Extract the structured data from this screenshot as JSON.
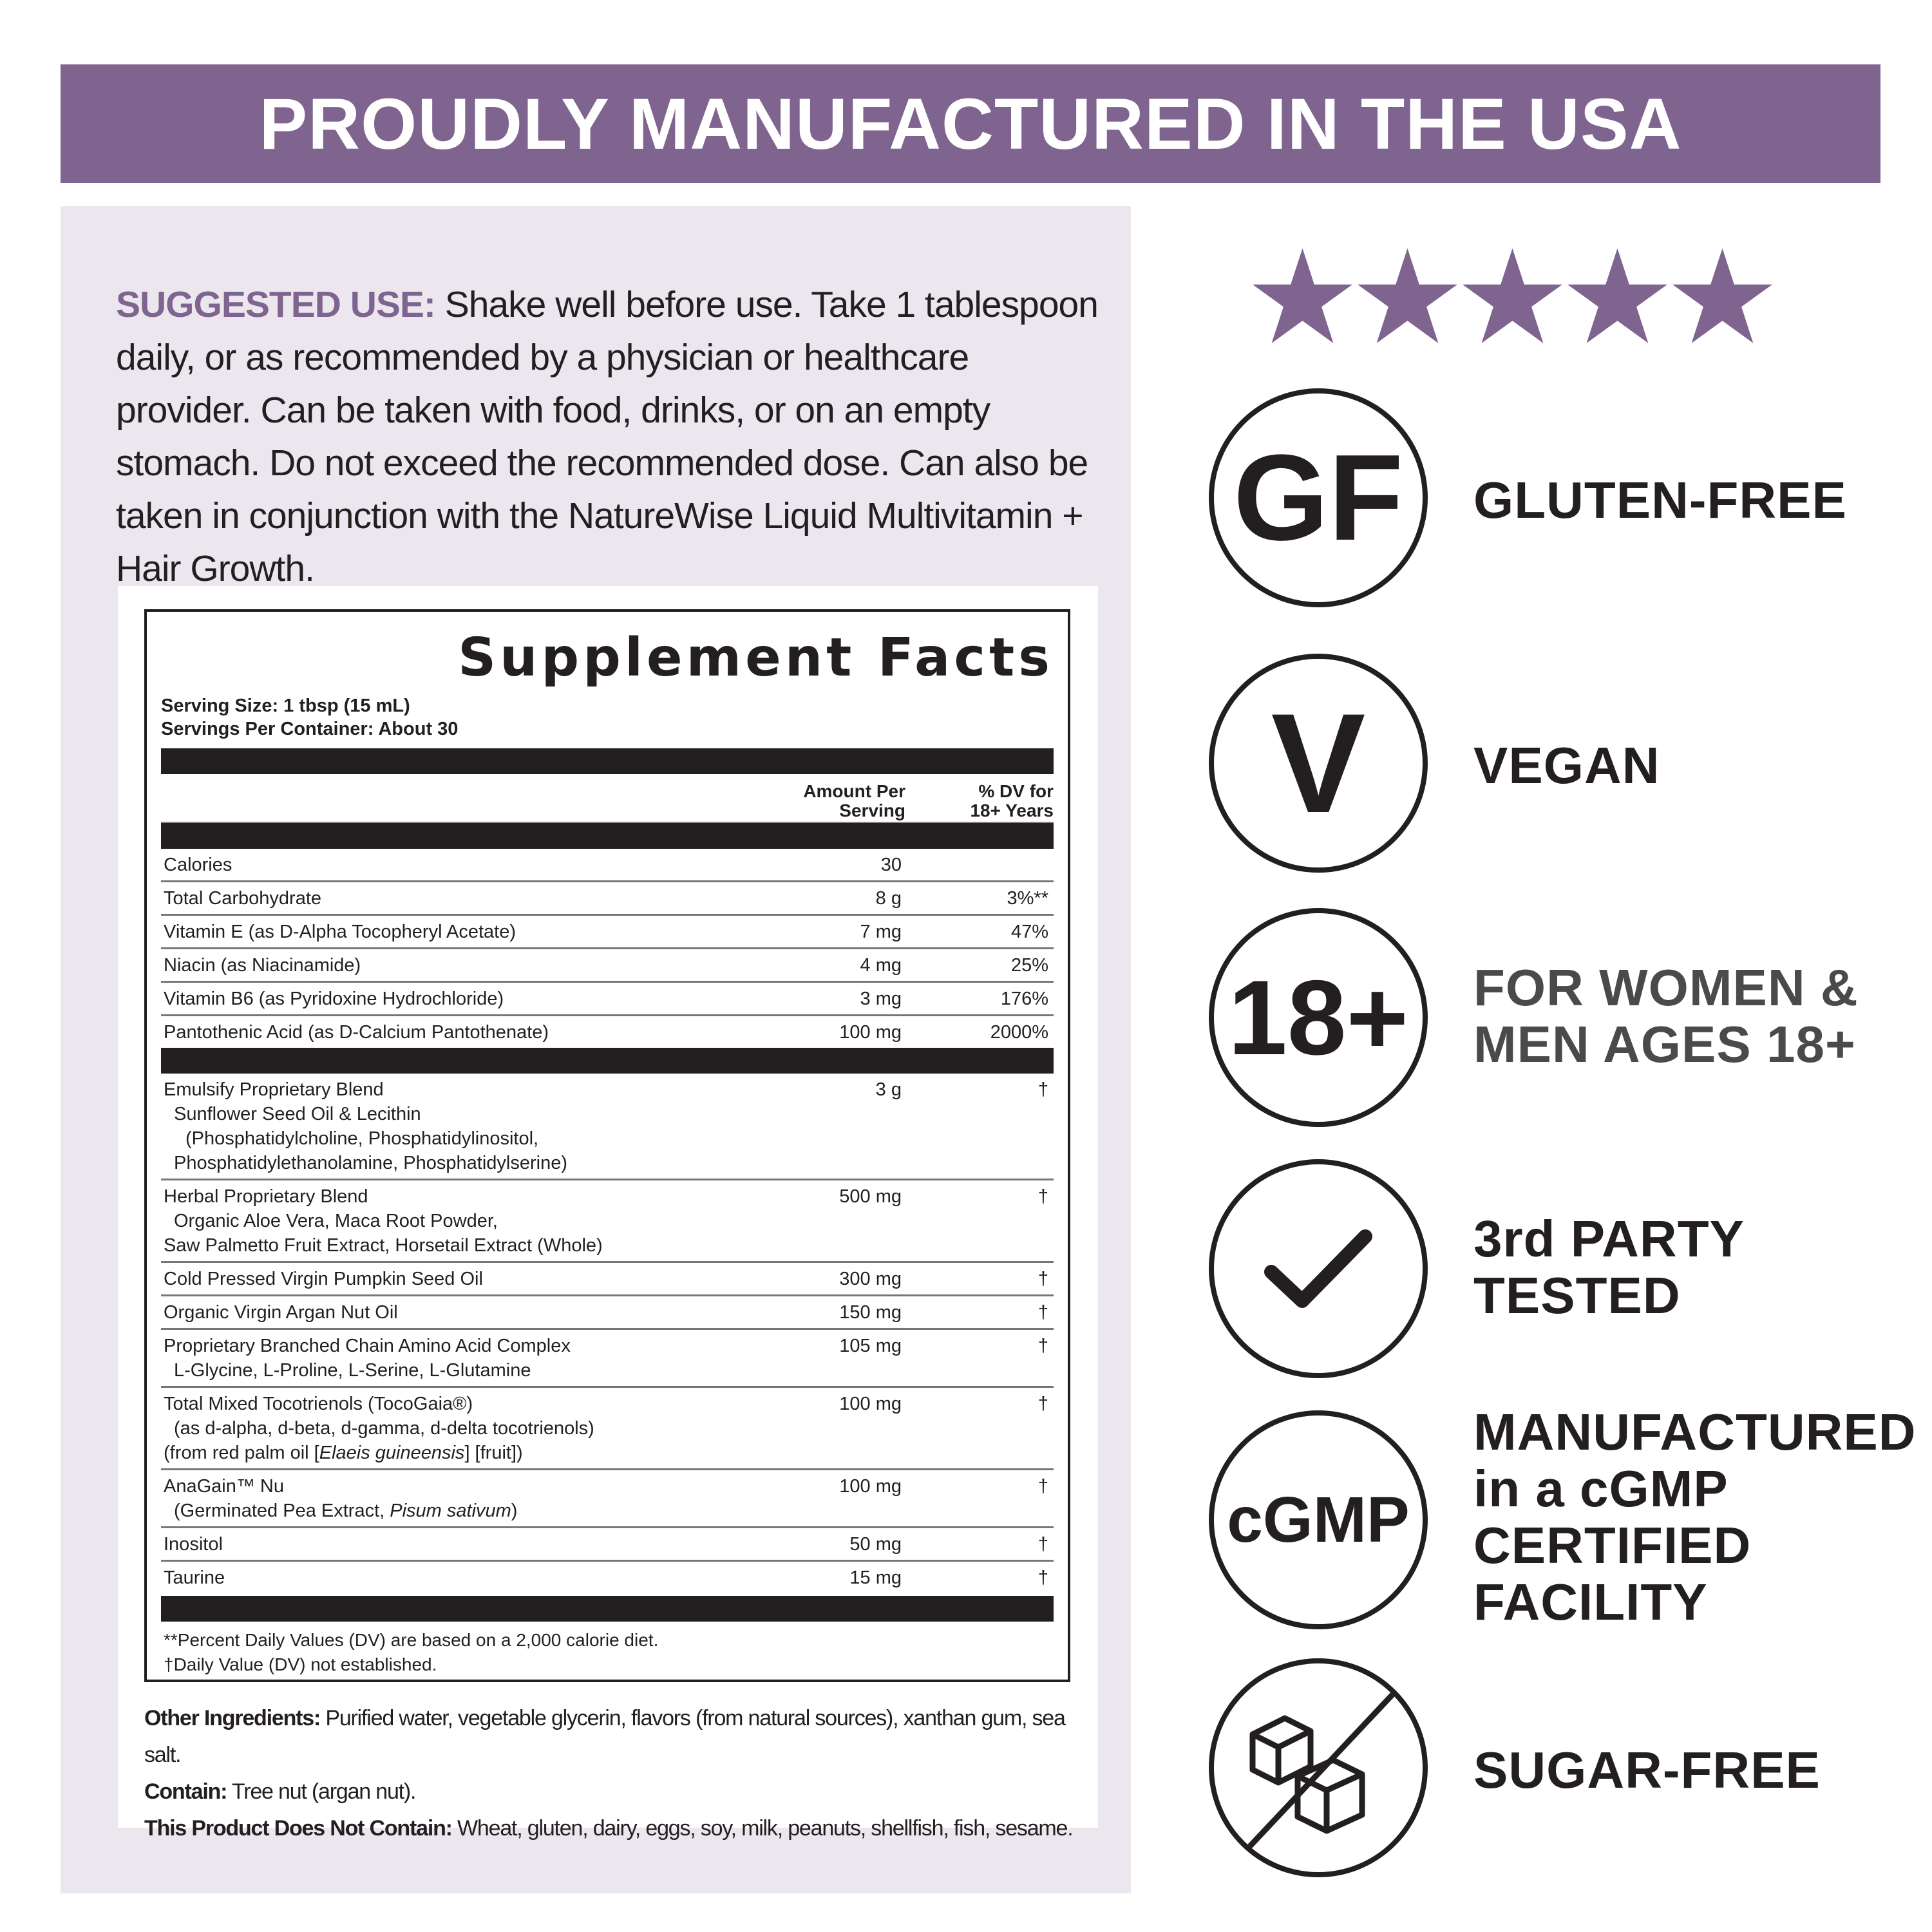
{
  "banner": {
    "title": "PROUDLY MANUFACTURED IN THE USA"
  },
  "colors": {
    "accent": "#7f6490",
    "panel": "#ece7ee",
    "text": "#231f20"
  },
  "suggested_use": {
    "label": "SUGGESTED USE:",
    "text": " Shake well before use. Take 1 tablespoon daily, or as recommended by a physician or healthcare provider. Can be taken with food, drinks, or on an empty stomach. Do not exceed the recommended dose. Can also be taken in conjunction with the NatureWise Liquid Multivitamin + Hair Growth."
  },
  "facts": {
    "title": "Supplement Facts",
    "serving_size": "Serving Size: 1 tbsp (15 mL)",
    "servings_per": "Servings Per Container: About 30",
    "col_amount": [
      "Amount Per",
      "Serving"
    ],
    "col_dv": [
      "% DV for",
      "18+ Years"
    ],
    "section1": [
      {
        "lines": [
          [
            {
              "t": "Calories"
            }
          ]
        ],
        "amount": "30",
        "dv": ""
      },
      {
        "lines": [
          [
            {
              "t": "Total Carbohydrate"
            }
          ]
        ],
        "amount": "8 g",
        "dv": "3%**"
      },
      {
        "lines": [
          [
            {
              "t": "Vitamin E (as D-Alpha Tocopheryl Acetate)"
            }
          ]
        ],
        "amount": "7 mg",
        "dv": "47%"
      },
      {
        "lines": [
          [
            {
              "t": "Niacin (as Niacinamide)"
            }
          ]
        ],
        "amount": "4 mg",
        "dv": "25%"
      },
      {
        "lines": [
          [
            {
              "t": "Vitamin B6 (as Pyridoxine Hydrochloride)"
            }
          ]
        ],
        "amount": "3 mg",
        "dv": "176%"
      },
      {
        "lines": [
          [
            {
              "t": "Pantothenic Acid (as D-Calcium Pantothenate)"
            }
          ]
        ],
        "amount": "100 mg",
        "dv": "2000%"
      }
    ],
    "section2": [
      {
        "lines": [
          [
            {
              "t": "Emulsify Proprietary Blend"
            }
          ],
          [
            {
              "t": "Sunflower Seed Oil & Lecithin"
            }
          ],
          [
            {
              "t": "(Phosphatidylcholine, Phosphatidylinositol,"
            }
          ],
          [
            {
              "t": "Phosphatidylethanolamine, Phosphatidylserine)"
            }
          ]
        ],
        "indent": [
          0,
          1,
          2,
          1
        ],
        "amount": "3 g",
        "dv": "†"
      },
      {
        "lines": [
          [
            {
              "t": "Herbal Proprietary Blend"
            }
          ],
          [
            {
              "t": "Organic Aloe Vera, Maca Root Powder,"
            }
          ],
          [
            {
              "t": "Saw Palmetto Fruit Extract, Horsetail Extract (Whole)"
            }
          ]
        ],
        "indent": [
          0,
          1,
          0
        ],
        "amount": "500 mg",
        "dv": "†"
      },
      {
        "lines": [
          [
            {
              "t": "Cold Pressed Virgin Pumpkin Seed Oil"
            }
          ]
        ],
        "amount": "300 mg",
        "dv": "†"
      },
      {
        "lines": [
          [
            {
              "t": "Organic Virgin Argan Nut Oil"
            }
          ]
        ],
        "amount": "150 mg",
        "dv": "†"
      },
      {
        "lines": [
          [
            {
              "t": "Proprietary Branched Chain Amino Acid Complex"
            }
          ],
          [
            {
              "t": "L-Glycine, L-Proline, L-Serine, L-Glutamine"
            }
          ]
        ],
        "indent": [
          0,
          1
        ],
        "amount": "105 mg",
        "dv": "†"
      },
      {
        "lines": [
          [
            {
              "t": "Total Mixed Tocotrienols (TocoGaia®)"
            }
          ],
          [
            {
              "t": "(as d-alpha, d-beta, d-gamma, d-delta tocotrienols)"
            }
          ],
          [
            {
              "t": "(from red palm oil ["
            },
            {
              "t": "Elaeis guineensis",
              "i": true
            },
            {
              "t": "] [fruit])"
            }
          ]
        ],
        "indent": [
          0,
          1,
          0
        ],
        "amount": "100 mg",
        "dv": "†"
      },
      {
        "lines": [
          [
            {
              "t": "AnaGain™ Nu"
            }
          ],
          [
            {
              "t": "(Germinated Pea Extract, "
            },
            {
              "t": "Pisum sativum",
              "i": true
            },
            {
              "t": ")"
            }
          ]
        ],
        "indent": [
          0,
          1
        ],
        "amount": "100 mg",
        "dv": "†"
      },
      {
        "lines": [
          [
            {
              "t": "Inositol"
            }
          ]
        ],
        "amount": "50 mg",
        "dv": "†"
      },
      {
        "lines": [
          [
            {
              "t": "Taurine"
            }
          ]
        ],
        "amount": "15 mg",
        "dv": "†"
      }
    ],
    "footnote1": "**Percent Daily Values (DV) are based on a 2,000 calorie diet.",
    "footnote2": "†Daily Value (DV) not established."
  },
  "other": {
    "ingredients_label": "Other Ingredients:",
    "ingredients": " Purified water, vegetable glycerin, flavors (from natural sources), xanthan gum, sea salt.",
    "contain_label": "Contain:",
    "contain": " Tree nut (argan nut).",
    "not_contain_label": "This Product Does Not Contain:",
    "not_contain": " Wheat, gluten, dairy, eggs, soy, milk, peanuts, shellfish, fish, sesame."
  },
  "rating": {
    "stars": 5,
    "max": 5
  },
  "badges": [
    {
      "icon": "gluten-free-icon",
      "symbol": "GF",
      "label": [
        "GLUTEN-FREE"
      ]
    },
    {
      "icon": "vegan-icon",
      "symbol": "V",
      "label": [
        "VEGAN"
      ]
    },
    {
      "icon": "age-18-plus-icon",
      "symbol": "18+",
      "label": [
        "FOR WOMEN &",
        "MEN AGES 18+"
      ]
    },
    {
      "icon": "checkmark-icon",
      "symbol": "",
      "label": [
        "3rd PARTY",
        "TESTED"
      ]
    },
    {
      "icon": "cgmp-icon",
      "symbol": "cGMP",
      "label": [
        "MANUFACTURED",
        "in a cGMP",
        "CERTIFIED",
        "FACILITY"
      ]
    },
    {
      "icon": "sugar-free-icon",
      "symbol": "",
      "label": [
        "SUGAR-FREE"
      ]
    }
  ]
}
